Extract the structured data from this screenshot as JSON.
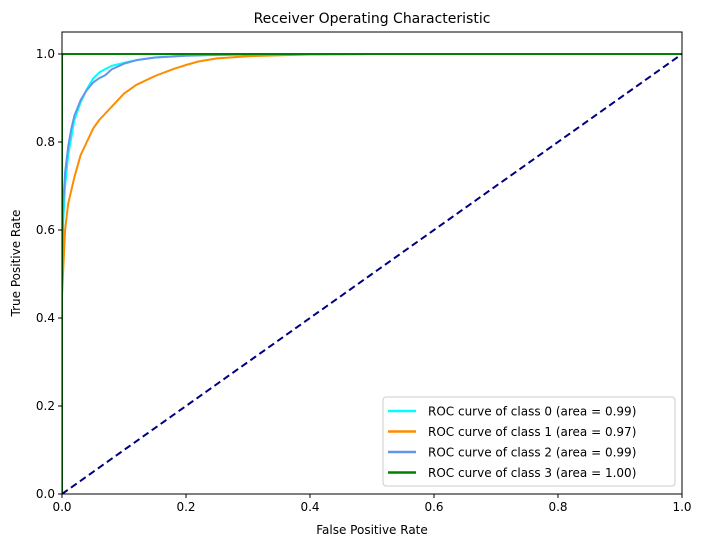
{
  "chart_data": {
    "type": "line",
    "title": "Receiver Operating Characteristic",
    "xlabel": "False Positive Rate",
    "ylabel": "True Positive Rate",
    "xlim": [
      0.0,
      1.0
    ],
    "ylim": [
      0.0,
      1.05
    ],
    "xticks": [
      "0.0",
      "0.2",
      "0.4",
      "0.6",
      "0.8",
      "1.0"
    ],
    "yticks": [
      "0.0",
      "0.2",
      "0.4",
      "0.6",
      "0.8",
      "1.0"
    ],
    "grid": false,
    "legend_position": "lower-right",
    "series": [
      {
        "name": "ROC curve of class 0 (area = 0.99)",
        "color": "#00ffff",
        "x": [
          0.0,
          0.0,
          0.002,
          0.005,
          0.01,
          0.015,
          0.02,
          0.03,
          0.04,
          0.05,
          0.06,
          0.07,
          0.08,
          0.1,
          0.12,
          0.15,
          0.2,
          0.3,
          0.5,
          1.0
        ],
        "y": [
          0.0,
          0.45,
          0.62,
          0.7,
          0.77,
          0.81,
          0.85,
          0.89,
          0.92,
          0.944,
          0.958,
          0.966,
          0.973,
          0.98,
          0.986,
          0.992,
          0.997,
          0.999,
          1.0,
          1.0
        ]
      },
      {
        "name": "ROC curve of class 1 (area = 0.97)",
        "color": "#ff8c00",
        "x": [
          0.0,
          0.0,
          0.005,
          0.01,
          0.02,
          0.03,
          0.04,
          0.05,
          0.06,
          0.08,
          0.1,
          0.12,
          0.15,
          0.18,
          0.2,
          0.22,
          0.25,
          0.3,
          0.4,
          0.5,
          1.0
        ],
        "y": [
          0.0,
          0.45,
          0.6,
          0.66,
          0.72,
          0.77,
          0.8,
          0.83,
          0.85,
          0.88,
          0.91,
          0.93,
          0.95,
          0.966,
          0.975,
          0.983,
          0.99,
          0.995,
          0.999,
          1.0,
          1.0
        ]
      },
      {
        "name": "ROC curve of class 2 (area = 0.99)",
        "color": "#6495ed",
        "x": [
          0.0,
          0.0,
          0.002,
          0.005,
          0.01,
          0.015,
          0.02,
          0.03,
          0.04,
          0.05,
          0.06,
          0.07,
          0.08,
          0.1,
          0.12,
          0.15,
          0.2,
          0.25,
          0.3,
          0.5,
          1.0
        ],
        "y": [
          0.0,
          0.45,
          0.66,
          0.73,
          0.79,
          0.83,
          0.86,
          0.895,
          0.918,
          0.935,
          0.945,
          0.952,
          0.965,
          0.978,
          0.986,
          0.992,
          0.996,
          0.998,
          0.999,
          1.0,
          1.0
        ]
      },
      {
        "name": "ROC curve of class 3 (area = 1.00)",
        "color": "#008000",
        "x": [
          0.0,
          0.0,
          0.001,
          0.1,
          0.3,
          1.0
        ],
        "y": [
          0.0,
          0.995,
          1.0,
          1.0,
          1.0,
          1.0
        ]
      }
    ],
    "reference_line": {
      "color": "#000080",
      "style": "dashed",
      "x": [
        0.0,
        1.0
      ],
      "y": [
        0.0,
        1.0
      ]
    }
  }
}
